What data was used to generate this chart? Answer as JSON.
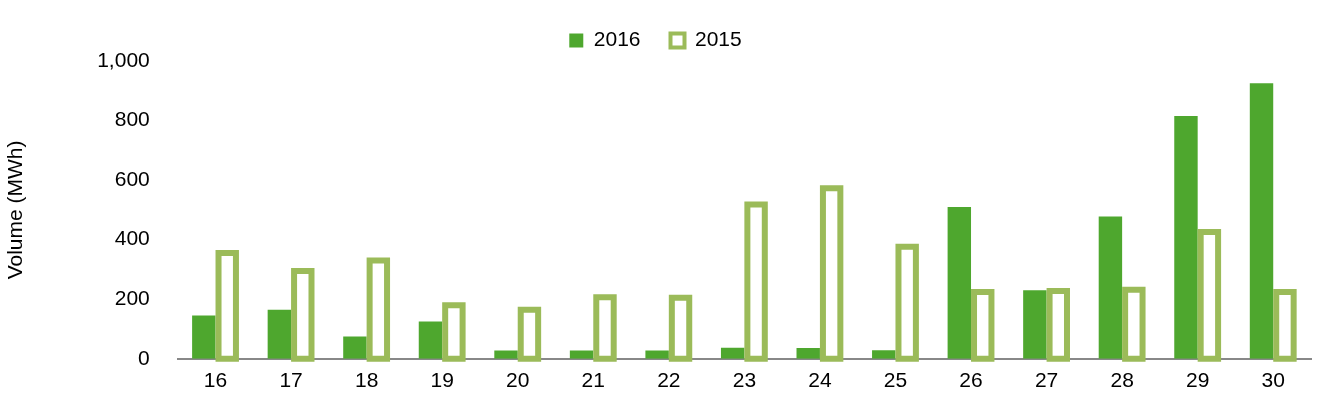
{
  "chart_data": {
    "type": "bar",
    "ylabel": "Volume (MWh)",
    "categories": [
      "16",
      "17",
      "18",
      "19",
      "20",
      "21",
      "22",
      "23",
      "24",
      "25",
      "26",
      "27",
      "28",
      "29",
      "30"
    ],
    "series": [
      {
        "name": "2016",
        "color": "#4ea72e",
        "values": [
          145,
          165,
          75,
          125,
          28,
          28,
          28,
          37,
          36,
          29,
          510,
          230,
          478,
          815,
          925
        ]
      },
      {
        "name": "2015",
        "color": "#9bbb59",
        "values": [
          365,
          305,
          340,
          190,
          175,
          217,
          215,
          528,
          583,
          386,
          234,
          238,
          242,
          436,
          234
        ]
      }
    ],
    "ylim": [
      0,
      1000
    ],
    "yticks": [
      0,
      200,
      400,
      600,
      800,
      {
        "value": 1000,
        "label": "1,000"
      }
    ],
    "grid": false,
    "legend": "top"
  }
}
